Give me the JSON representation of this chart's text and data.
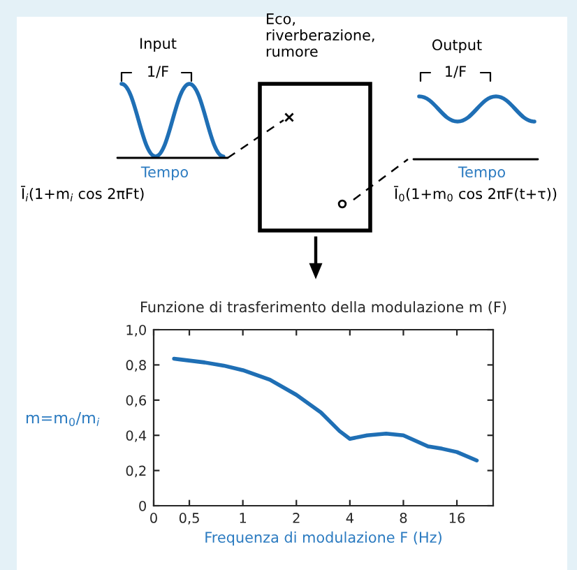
{
  "chart_data": {
    "type": "line",
    "title": "Funzione di trasferimento della modulazione m (F)",
    "xlabel": "Frequenza di modulazione F (Hz)",
    "ylabel": "m=m$_{0}$/m$_{i}$",
    "annotations": [
      "Input",
      "1/F",
      "Tempo",
      "Ī$_{i}$(1+m$_{i}$ cos 2πFt)",
      "Eco,\nriverberazione,\nrumore",
      "Output",
      "1/F",
      "Tempo",
      "Ī$_{0}$(1+m$_{0}$ cos 2πF(t+τ))"
    ],
    "x": [
      0.41,
      0.61,
      0.78,
      1,
      1.42,
      2,
      2.75,
      3.5,
      4,
      5.0,
      6.4,
      8,
      11.0,
      13.2,
      16,
      20.7
    ],
    "series": [
      {
        "color": "#1f6fb5",
        "values": [
          0.835,
          0.814,
          0.796,
          0.77,
          0.716,
          0.63,
          0.53,
          0.424,
          0.38,
          0.4,
          0.41,
          0.4,
          0.337,
          0.324,
          0.305,
          0.257
        ]
      }
    ],
    "log": "x",
    "xlim": [
      0.315,
      25.6
    ],
    "xticks": [
      {
        "value": 0.315,
        "label": "0"
      },
      {
        "value": 0.5,
        "label": "0,5"
      },
      {
        "value": 1,
        "label": "1"
      },
      {
        "value": 2,
        "label": "2"
      },
      {
        "value": 4,
        "label": "4"
      },
      {
        "value": 8,
        "label": "8"
      },
      {
        "value": 16,
        "label": "16"
      }
    ],
    "ylim": [
      0,
      1
    ],
    "yticks": [
      {
        "value": 0,
        "label": "0"
      },
      {
        "value": 0.2,
        "label": "0,2"
      },
      {
        "value": 0.4,
        "label": "0,4"
      },
      {
        "value": 0.6,
        "label": "0,6"
      },
      {
        "value": 0.8,
        "label": "0,8"
      },
      {
        "value": 1,
        "label": "1,0"
      }
    ],
    "grid": false,
    "line_style": "solid"
  }
}
